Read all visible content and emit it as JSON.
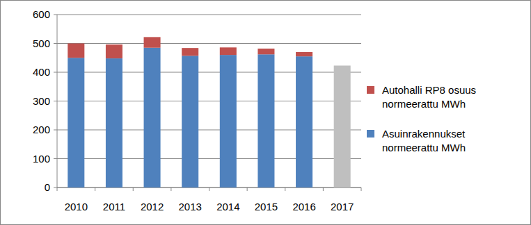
{
  "chart_data": {
    "type": "bar",
    "stacked": true,
    "grid": true,
    "legend": "right",
    "categories": [
      "2010",
      "2011",
      "2012",
      "2013",
      "2014",
      "2015",
      "2016",
      "2017"
    ],
    "ylim": [
      0,
      600
    ],
    "yticks": [
      0,
      100,
      200,
      300,
      400,
      500,
      600
    ],
    "series": [
      {
        "name": "Asuinrakennukset normeerattu MWh",
        "color": "#4f81bd",
        "colors": [
          "#4f81bd",
          "#4f81bd",
          "#4f81bd",
          "#4f81bd",
          "#4f81bd",
          "#4f81bd",
          "#4f81bd",
          "#bfbfbf"
        ],
        "values": [
          450,
          448,
          485,
          457,
          460,
          462,
          455,
          423
        ]
      },
      {
        "name": "Autohalli RP8 osuus normeerattu MWh",
        "color": "#c0504d",
        "values": [
          50,
          48,
          37,
          27,
          26,
          20,
          15,
          null
        ]
      }
    ]
  }
}
